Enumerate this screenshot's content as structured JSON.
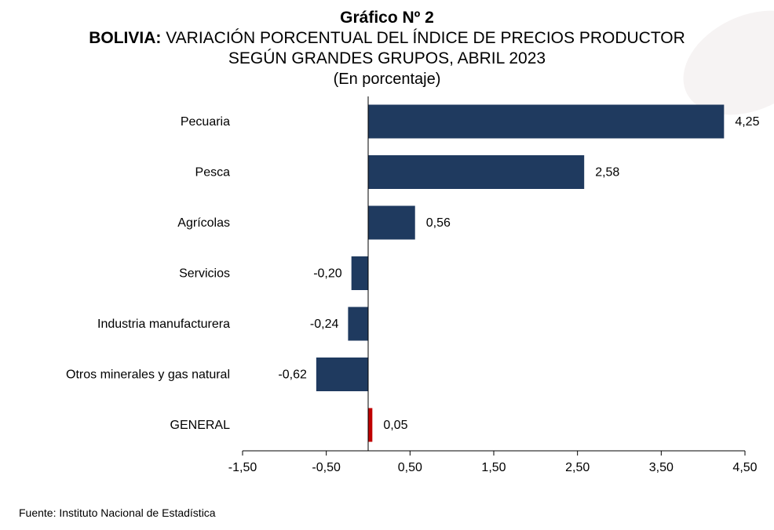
{
  "titles": {
    "heading": "Gráfico Nº 2",
    "line1_bold": "BOLIVIA:",
    "line1_rest": " VARIACIÓN PORCENTUAL DEL ÍNDICE DE PRECIOS PRODUCTOR",
    "line2": "SEGÚN GRANDES GRUPOS, ABRIL 2023",
    "unit": "(En porcentaje)"
  },
  "source": "Fuente: Instituto Nacional de Estadística",
  "colors": {
    "bar": "#1f3a5f",
    "highlight": "#c00000",
    "axis": "#000000"
  },
  "chart_data": {
    "type": "bar",
    "orientation": "horizontal",
    "categories": [
      "Pecuaria",
      "Pesca",
      "Agrícolas",
      "Servicios",
      "Industria manufacturera",
      "Otros minerales y gas natural",
      "GENERAL"
    ],
    "values": [
      4.25,
      2.58,
      0.56,
      -0.2,
      -0.24,
      -0.62,
      0.05
    ],
    "value_labels": [
      "4,25",
      "2,58",
      "0,56",
      "-0,20",
      "-0,24",
      "-0,62",
      "0,05"
    ],
    "highlight": [
      "GENERAL"
    ],
    "xlim": [
      -1.5,
      4.5
    ],
    "x_ticks": [
      -1.5,
      -0.5,
      0.5,
      1.5,
      2.5,
      3.5,
      4.5
    ],
    "x_tick_labels": [
      "-1,50",
      "-0,50",
      "0,50",
      "1,50",
      "2,50",
      "3,50",
      "4,50"
    ],
    "grid": false,
    "legend": "none"
  }
}
